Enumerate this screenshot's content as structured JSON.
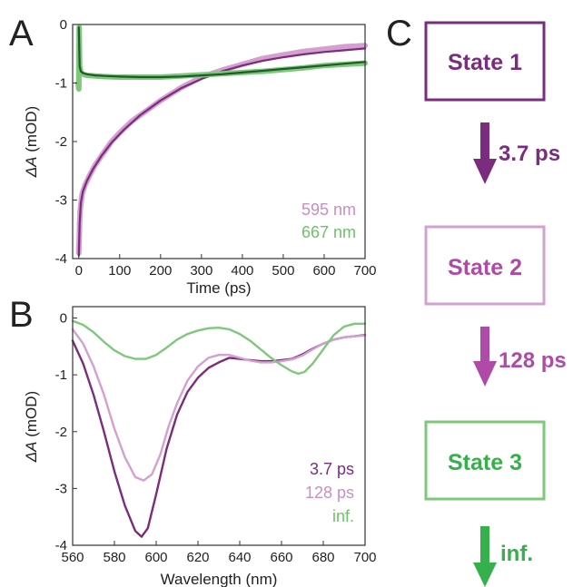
{
  "panel_labels": {
    "a": "A",
    "b": "B",
    "c": "C"
  },
  "colors": {
    "dark_purple": "#7b2c7f",
    "light_purple": "#d4a0d0",
    "mid_purple": "#b04aa8",
    "green": "#7ec87a",
    "dark_green": "#1f5a2a",
    "arrow_green": "#36b04a",
    "text_purple_light": "#c98ec6",
    "text_green": "#6ec26a"
  },
  "chart_data": [
    {
      "type": "line",
      "panel": "A",
      "xlabel": "Time (ps)",
      "ylabel_italic": "ΔA",
      "ylabel_unit": " (mOD)",
      "xlim": [
        -15,
        700
      ],
      "ylim": [
        -4,
        0
      ],
      "xticks": [
        0,
        100,
        200,
        300,
        400,
        500,
        600,
        700
      ],
      "yticks": [
        0,
        -1,
        -2,
        -3,
        -4
      ],
      "legend": [
        "595 nm",
        "667 nm"
      ],
      "series": [
        {
          "name": "595 nm",
          "role": "data",
          "color": "#d4a0d0",
          "x": [
            0,
            3,
            8,
            15,
            25,
            40,
            60,
            80,
            100,
            130,
            160,
            200,
            250,
            300,
            350,
            400,
            450,
            500,
            550,
            600,
            650,
            700
          ],
          "y": [
            -3.9,
            -3.2,
            -2.9,
            -2.75,
            -2.6,
            -2.4,
            -2.2,
            -2.0,
            -1.85,
            -1.65,
            -1.5,
            -1.3,
            -1.08,
            -0.9,
            -0.78,
            -0.68,
            -0.58,
            -0.52,
            -0.46,
            -0.42,
            -0.38,
            -0.36
          ]
        },
        {
          "name": "595 nm fit",
          "role": "fit",
          "color": "#7b2c7f",
          "x": [
            0,
            2,
            5,
            10,
            20,
            35,
            55,
            80,
            110,
            150,
            200,
            250,
            300,
            350,
            400,
            450,
            500,
            550,
            600,
            650,
            700
          ],
          "y": [
            -3.95,
            -3.4,
            -3.05,
            -2.85,
            -2.67,
            -2.47,
            -2.25,
            -2.02,
            -1.8,
            -1.55,
            -1.3,
            -1.09,
            -0.93,
            -0.8,
            -0.7,
            -0.62,
            -0.56,
            -0.51,
            -0.47,
            -0.44,
            -0.41
          ]
        },
        {
          "name": "667 nm",
          "role": "data",
          "color": "#7ec87a",
          "x": [
            -2,
            0,
            1,
            2,
            5,
            10,
            20,
            40,
            60,
            100,
            150,
            200,
            250,
            300,
            350,
            400,
            450,
            500,
            550,
            600,
            650,
            700
          ],
          "y": [
            -1.0,
            -1.1,
            -0.05,
            -0.7,
            -0.82,
            -0.85,
            -0.87,
            -0.88,
            -0.89,
            -0.9,
            -0.9,
            -0.9,
            -0.88,
            -0.86,
            -0.84,
            -0.82,
            -0.8,
            -0.77,
            -0.74,
            -0.7,
            -0.68,
            -0.66
          ]
        },
        {
          "name": "667 nm fit",
          "role": "fit",
          "color": "#1f5a2a",
          "x": [
            0,
            2,
            5,
            10,
            20,
            40,
            70,
            100,
            150,
            200,
            250,
            300,
            350,
            400,
            450,
            500,
            550,
            600,
            650,
            700
          ],
          "y": [
            -0.05,
            -0.72,
            -0.8,
            -0.83,
            -0.85,
            -0.87,
            -0.88,
            -0.89,
            -0.9,
            -0.9,
            -0.89,
            -0.87,
            -0.85,
            -0.82,
            -0.79,
            -0.76,
            -0.73,
            -0.7,
            -0.67,
            -0.64
          ]
        }
      ]
    },
    {
      "type": "line",
      "panel": "B",
      "xlabel": "Wavelength (nm)",
      "ylabel_italic": "ΔA",
      "ylabel_unit": " (mOD)",
      "xlim": [
        560,
        700
      ],
      "ylim": [
        -4,
        0.2
      ],
      "xticks": [
        560,
        580,
        600,
        620,
        640,
        660,
        680,
        700
      ],
      "yticks": [
        0,
        -1,
        -2,
        -3,
        -4
      ],
      "legend": [
        "3.7 ps",
        "128 ps",
        "inf."
      ],
      "series": [
        {
          "name": "3.7 ps",
          "color": "#7b2c7f",
          "x": [
            560,
            565,
            570,
            575,
            580,
            585,
            590,
            593,
            596,
            600,
            605,
            610,
            615,
            620,
            625,
            630,
            635,
            640,
            645,
            650,
            655,
            660,
            665,
            670,
            675,
            680,
            685,
            690,
            695,
            700
          ],
          "y": [
            -0.4,
            -0.8,
            -1.35,
            -2.0,
            -2.7,
            -3.3,
            -3.75,
            -3.85,
            -3.7,
            -3.1,
            -2.3,
            -1.7,
            -1.3,
            -1.05,
            -0.88,
            -0.78,
            -0.7,
            -0.72,
            -0.74,
            -0.76,
            -0.76,
            -0.74,
            -0.72,
            -0.64,
            -0.54,
            -0.45,
            -0.38,
            -0.34,
            -0.32,
            -0.3
          ]
        },
        {
          "name": "128 ps",
          "color": "#d4a0d0",
          "x": [
            560,
            565,
            570,
            575,
            580,
            585,
            590,
            594,
            598,
            602,
            606,
            610,
            615,
            620,
            625,
            630,
            635,
            640,
            645,
            650,
            655,
            660,
            665,
            670,
            675,
            680,
            685,
            690,
            695,
            700
          ],
          "y": [
            -0.2,
            -0.45,
            -0.85,
            -1.35,
            -1.95,
            -2.45,
            -2.8,
            -2.86,
            -2.75,
            -2.4,
            -1.9,
            -1.5,
            -1.1,
            -0.85,
            -0.7,
            -0.65,
            -0.65,
            -0.7,
            -0.75,
            -0.78,
            -0.78,
            -0.76,
            -0.73,
            -0.66,
            -0.55,
            -0.45,
            -0.38,
            -0.34,
            -0.32,
            -0.31
          ]
        },
        {
          "name": "inf.",
          "color": "#7ec87a",
          "x": [
            560,
            565,
            570,
            575,
            580,
            585,
            590,
            595,
            600,
            605,
            610,
            615,
            620,
            625,
            630,
            635,
            640,
            645,
            650,
            655,
            660,
            665,
            668,
            671,
            675,
            680,
            685,
            690,
            695,
            700
          ],
          "y": [
            -0.05,
            -0.12,
            -0.25,
            -0.42,
            -0.57,
            -0.67,
            -0.72,
            -0.72,
            -0.65,
            -0.52,
            -0.38,
            -0.28,
            -0.22,
            -0.18,
            -0.17,
            -0.2,
            -0.28,
            -0.4,
            -0.55,
            -0.7,
            -0.83,
            -0.94,
            -0.98,
            -0.95,
            -0.8,
            -0.55,
            -0.3,
            -0.15,
            -0.1,
            -0.1
          ]
        }
      ]
    }
  ],
  "diagram": {
    "states": [
      {
        "label": "State 1",
        "color": "#7b2c7f"
      },
      {
        "label": "State 2",
        "color": "#d4a0d0",
        "text_color": "#b04aa8"
      },
      {
        "label": "State 3",
        "color": "#7ec87a",
        "text_color": "#36b04a"
      }
    ],
    "arrows": [
      {
        "label": "3.7 ps",
        "color": "#7b2c7f"
      },
      {
        "label": "128 ps",
        "color": "#b04aa8"
      },
      {
        "label": "inf.",
        "color": "#36b04a"
      }
    ]
  }
}
